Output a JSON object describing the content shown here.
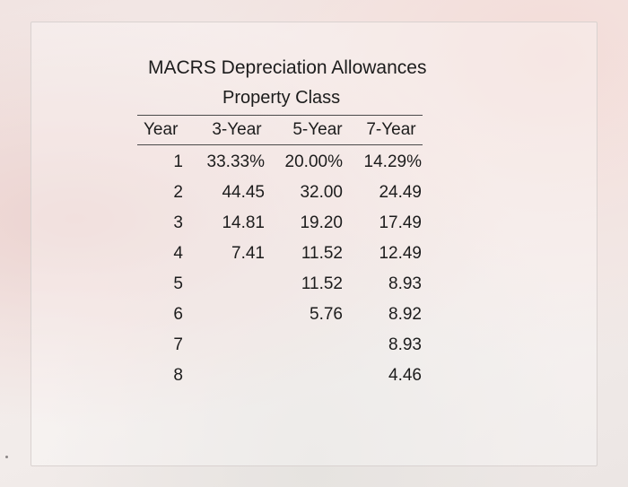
{
  "table": {
    "title": "MACRS Depreciation Allowances",
    "subtitle": "Property Class",
    "headers": [
      "Year",
      "3-Year",
      "5-Year",
      "7-Year"
    ],
    "rows": [
      [
        "1",
        "33.33%",
        "20.00%",
        "14.29%"
      ],
      [
        "2",
        "44.45",
        "32.00",
        "24.49"
      ],
      [
        "3",
        "14.81",
        "19.20",
        "17.49"
      ],
      [
        "4",
        "7.41",
        "11.52",
        "12.49"
      ],
      [
        "5",
        "",
        "11.52",
        "8.93"
      ],
      [
        "6",
        "",
        "5.76",
        "8.92"
      ],
      [
        "7",
        "",
        "",
        "8.93"
      ],
      [
        "8",
        "",
        "",
        "4.46"
      ]
    ]
  }
}
